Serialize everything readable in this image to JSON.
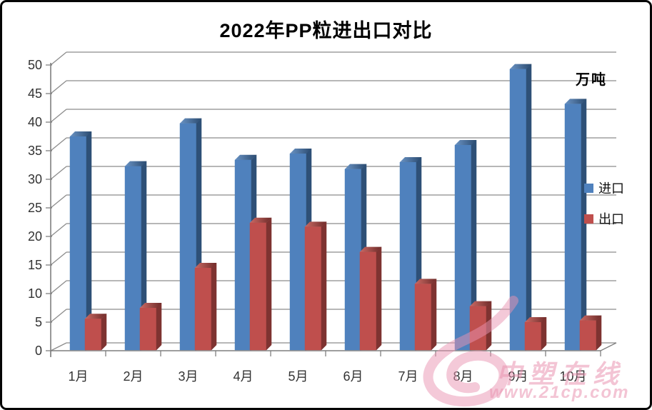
{
  "title": "2022年PP粒进出口对比",
  "unit_label": "万吨",
  "legend": {
    "import": "进口",
    "export": "出口"
  },
  "watermark": {
    "brand": "中塑在线",
    "url": "www.21cp.com"
  },
  "colors": {
    "import_front": "#4F81BD",
    "import_side": "#2E5077",
    "import_top_light": "#6A93C4",
    "import_top_dark": "#2B4B70",
    "export_front": "#BF4F4D",
    "export_side": "#7E3331",
    "export_top_light": "#CB6A64",
    "export_top_dark": "#6E2B29",
    "gridline": "#8C8C8C",
    "axis": "#7F7F7F",
    "label_text": "#333333",
    "watermark_pink": "rgba(233,148,177,0.5)"
  },
  "chart_data": {
    "type": "bar",
    "style": "3d-column",
    "title": "2022年PP粒进出口对比",
    "categories": [
      "1月",
      "2月",
      "3月",
      "4月",
      "5月",
      "6月",
      "7月",
      "8月",
      "9月",
      "10月"
    ],
    "series": [
      {
        "name": "进口",
        "values": [
          37.5,
          32.3,
          39.8,
          33.4,
          34.5,
          31.8,
          33.0,
          36.0,
          49.3,
          43.2
        ]
      },
      {
        "name": "出口",
        "values": [
          5.6,
          7.5,
          14.5,
          22.4,
          21.7,
          17.3,
          11.7,
          7.8,
          5.0,
          5.3
        ]
      }
    ],
    "xlabel": "",
    "ylabel": "万吨",
    "ylim": [
      0,
      50
    ],
    "ytick_step": 5,
    "grid": true,
    "legend_position": "right"
  }
}
